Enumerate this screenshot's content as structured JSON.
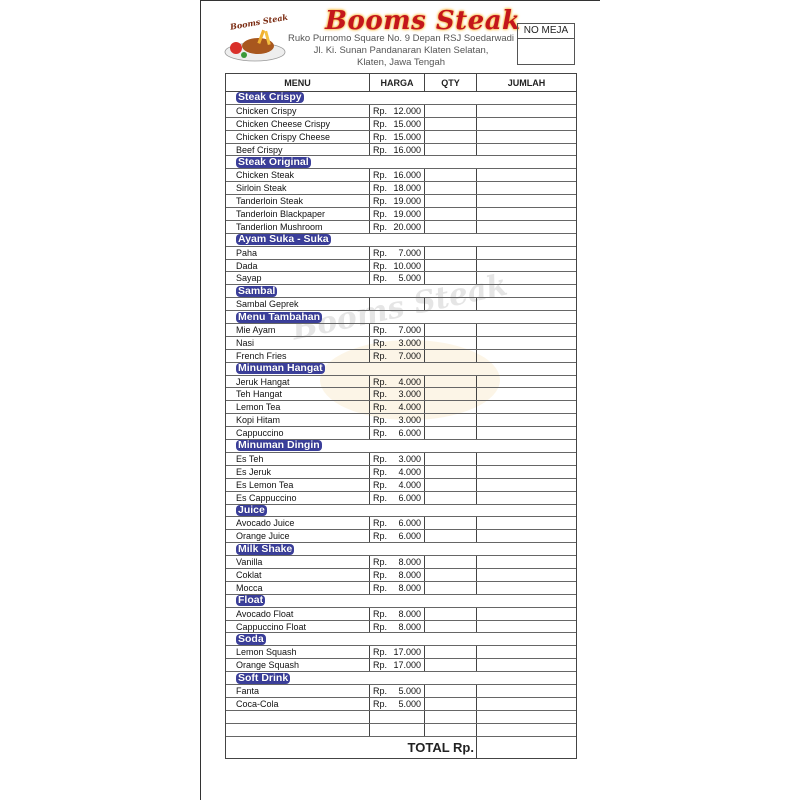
{
  "header": {
    "logo_text": "Booms Steak",
    "title": "Booms Steak",
    "address_lines": [
      "Ruko Purnomo Square No. 9 Depan RSJ Soedarwadi",
      "Jl. Ki. Sunan Pandanaran Klaten Selatan,",
      "Klaten, Jawa Tengah"
    ],
    "no_meja_label": "NO MEJA"
  },
  "table": {
    "columns": [
      "MENU",
      "HARGA",
      "QTY",
      "JUMLAH"
    ],
    "currency": "Rp.",
    "sections": [
      {
        "name": "Steak Crispy",
        "items": [
          [
            "Chicken Crispy",
            "12.000"
          ],
          [
            "Chicken Cheese Crispy",
            "15.000"
          ],
          [
            "Chicken Crispy Cheese",
            "15.000"
          ],
          [
            "Beef Crispy",
            "16.000"
          ]
        ]
      },
      {
        "name": "Steak Original",
        "items": [
          [
            "Chicken Steak",
            "16.000"
          ],
          [
            "Sirloin Steak",
            "18.000"
          ],
          [
            "Tanderloin Steak",
            "19.000"
          ],
          [
            "Tanderloin Blackpaper",
            "19.000"
          ],
          [
            "Tanderlion Mushroom",
            "20.000"
          ]
        ]
      },
      {
        "name": "Ayam Suka - Suka",
        "items": [
          [
            "Paha",
            "7.000"
          ],
          [
            "Dada",
            "10.000"
          ],
          [
            "Sayap",
            "5.000"
          ]
        ]
      },
      {
        "name": "Sambal",
        "items": [
          [
            "Sambal Geprek",
            ""
          ]
        ]
      },
      {
        "name": "Menu Tambahan",
        "items": [
          [
            "Mie Ayam",
            "7.000"
          ],
          [
            "Nasi",
            "3.000"
          ],
          [
            "French Fries",
            "7.000"
          ]
        ]
      },
      {
        "name": "Minuman Hangat",
        "items": [
          [
            "Jeruk Hangat",
            "4.000"
          ],
          [
            "Teh Hangat",
            "3.000"
          ],
          [
            "Lemon Tea",
            "4.000"
          ],
          [
            "Kopi Hitam",
            "3.000"
          ],
          [
            "Cappuccino",
            "6.000"
          ]
        ]
      },
      {
        "name": "Minuman Dingin",
        "items": [
          [
            "Es Teh",
            "3.000"
          ],
          [
            "Es Jeruk",
            "4.000"
          ],
          [
            "Es Lemon Tea",
            "4.000"
          ],
          [
            "Es Cappuccino",
            "6.000"
          ]
        ]
      },
      {
        "name": "Juice",
        "items": [
          [
            "Avocado Juice",
            "6.000"
          ],
          [
            "Orange Juice",
            "6.000"
          ]
        ]
      },
      {
        "name": "Milk Shake",
        "items": [
          [
            "Vanilla",
            "8.000"
          ],
          [
            "Coklat",
            "8.000"
          ],
          [
            "Mocca",
            "8.000"
          ]
        ]
      },
      {
        "name": "Float",
        "items": [
          [
            "Avocado Float",
            "8.000"
          ],
          [
            "Cappuccino Float",
            "8.000"
          ]
        ]
      },
      {
        "name": "Soda",
        "items": [
          [
            "Lemon Squash",
            "17.000"
          ],
          [
            "Orange Squash",
            "17.000"
          ]
        ]
      },
      {
        "name": "Soft Drink",
        "items": [
          [
            "Fanta",
            "5.000"
          ],
          [
            "Coca-Cola",
            "5.000"
          ]
        ]
      }
    ],
    "total_label": "TOTAL Rp."
  },
  "watermark": "Booms Steak",
  "colors": {
    "title": "#c4161c",
    "category_bg": "#3b3f9a"
  }
}
